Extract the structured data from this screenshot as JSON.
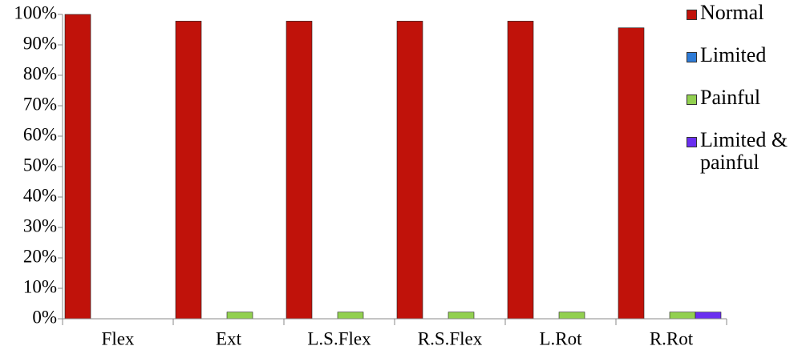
{
  "chart_data": {
    "type": "bar",
    "categories": [
      "Flex",
      "Ext",
      "L.S.Flex",
      "R.S.Flex",
      "L.Rot",
      "R.Rot"
    ],
    "series": [
      {
        "name": "Normal",
        "color": "#c0120a",
        "values": [
          100,
          97.8,
          97.8,
          97.8,
          97.8,
          95.6
        ]
      },
      {
        "name": "Limited",
        "color": "#2e7bd6",
        "values": [
          0,
          0,
          0,
          0,
          0,
          0
        ]
      },
      {
        "name": "Painful",
        "color": "#92d050",
        "values": [
          0,
          2.2,
          2.2,
          2.2,
          2.2,
          2.2
        ]
      },
      {
        "name": "Limited & painful",
        "color": "#6a2ff0",
        "values": [
          0,
          0,
          0,
          0,
          0,
          2.2
        ]
      }
    ],
    "ylim": [
      0,
      100
    ],
    "yticks": [
      {
        "value": 0,
        "label": "0%"
      },
      {
        "value": 10,
        "label": "10%"
      },
      {
        "value": 20,
        "label": "20%"
      },
      {
        "value": 30,
        "label": "30%"
      },
      {
        "value": 40,
        "label": "40%"
      },
      {
        "value": 50,
        "label": "50%"
      },
      {
        "value": 60,
        "label": "60%"
      },
      {
        "value": 70,
        "label": "70%"
      },
      {
        "value": 80,
        "label": "80%"
      },
      {
        "value": 90,
        "label": "90%"
      },
      {
        "value": 100,
        "label": "100%"
      }
    ],
    "legend": "right"
  }
}
